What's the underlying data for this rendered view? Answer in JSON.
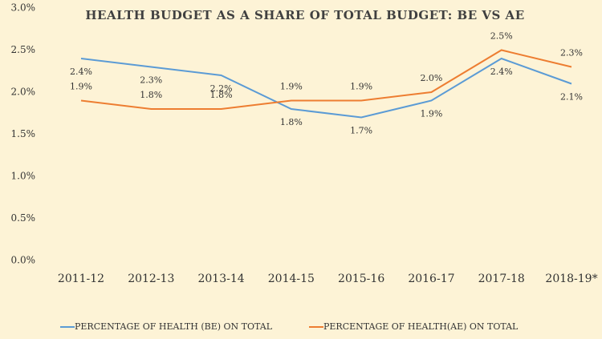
{
  "chart_data": {
    "type": "line",
    "title": "HEALTH BUDGET AS A SHARE OF TOTAL BUDGET: BE VS AE",
    "categories": [
      "2011-12",
      "2012-13",
      "2013-14",
      "2014-15",
      "2015-16",
      "2016-17",
      "2017-18",
      "2018-19*"
    ],
    "series": [
      {
        "name": "PERCENTAGE OF HEALTH (BE) ON TOTAL",
        "color": "#5b9bd5",
        "values": [
          2.4,
          2.3,
          2.2,
          1.8,
          1.7,
          1.9,
          2.4,
          2.1
        ],
        "value_labels": [
          "2.4%",
          "2.3%",
          "2.2%",
          "1.8%",
          "1.7%",
          "1.9%",
          "2.4%",
          "2.1%"
        ]
      },
      {
        "name": "PERCENTAGE OF HEALTH(AE) ON TOTAL",
        "color": "#ed7d31",
        "values": [
          1.9,
          1.8,
          1.8,
          1.9,
          1.9,
          2.0,
          2.5,
          2.3
        ],
        "value_labels": [
          "1.9%",
          "1.8%",
          "1.8%",
          "1.9%",
          "1.9%",
          "2.0%",
          "2.5%",
          "2.3%"
        ]
      }
    ],
    "ylim": [
      0,
      3
    ],
    "yticks": [
      {
        "value": 0,
        "label": "0.0%"
      },
      {
        "value": 0.5,
        "label": "0.5%"
      },
      {
        "value": 1,
        "label": "1.0%"
      },
      {
        "value": 1.5,
        "label": "1.5%"
      },
      {
        "value": 2,
        "label": "2.0%"
      },
      {
        "value": 2.5,
        "label": "2.5%"
      },
      {
        "value": 3,
        "label": "3.0%"
      }
    ],
    "grid": false,
    "legend": "bottom"
  }
}
